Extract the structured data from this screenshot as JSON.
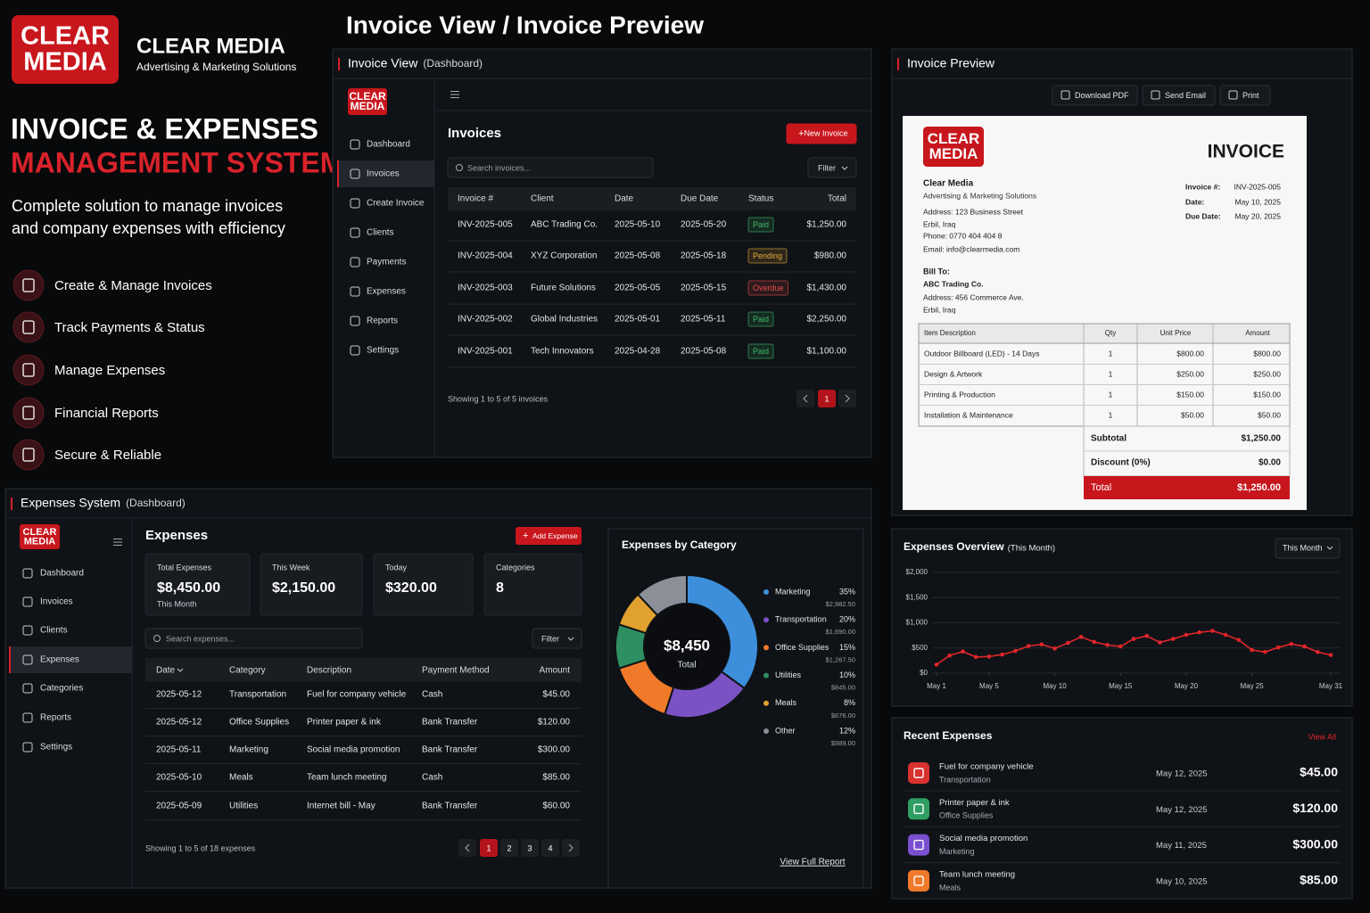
{
  "brand": {
    "logo_top": "CLEAR",
    "logo_bottom": "MEDIA",
    "name": "CLEAR MEDIA",
    "tagline": "Advertising & Marketing Solutions"
  },
  "hero": {
    "title_line1": "INVOICE & EXPENSES",
    "title_line2": "MANAGEMENT SYSTEM",
    "description_line1": "Complete solution to manage invoices",
    "description_line2": "and company expenses with efficiency",
    "features": [
      "Create & Manage Invoices",
      "Track Payments & Status",
      "Manage Expenses",
      "Financial Reports",
      "Secure & Reliable"
    ]
  },
  "page_title": "Invoice View / Invoice Preview",
  "invoice_view": {
    "panel_title": "Invoice View",
    "panel_note": "(Dashboard)",
    "nav": [
      "Dashboard",
      "Invoices",
      "Create Invoice",
      "Clients",
      "Payments",
      "Expenses",
      "Reports",
      "Settings"
    ],
    "heading": "Invoices",
    "new_button": "New Invoice",
    "search_placeholder": "Search invoices...",
    "filter": "Filter",
    "table": {
      "columns": [
        "Invoice #",
        "Client",
        "Date",
        "Due Date",
        "Status",
        "Total"
      ],
      "rows": [
        [
          "INV-2025-005",
          "ABC Trading Co.",
          "2025-05-10",
          "2025-05-20",
          "Paid",
          "$1,250.00"
        ],
        [
          "INV-2025-004",
          "XYZ Corporation",
          "2025-05-08",
          "2025-05-18",
          "Pending",
          "$980.00"
        ],
        [
          "INV-2025-003",
          "Future Solutions",
          "2025-05-05",
          "2025-05-15",
          "Overdue",
          "$1,430.00"
        ],
        [
          "INV-2025-002",
          "Global Industries",
          "2025-05-01",
          "2025-05-11",
          "Paid",
          "$2,250.00"
        ],
        [
          "INV-2025-001",
          "Tech Innovators",
          "2025-04-28",
          "2025-05-08",
          "Paid",
          "$1,100.00"
        ]
      ],
      "status_colors": [
        "#3fb96a",
        "#e5a93a",
        "#e24b4b",
        "#3fb96a",
        "#3fb96a"
      ]
    },
    "footer": "Showing 1 to 5 of 5 invoices",
    "pages": [
      1
    ]
  },
  "invoice_preview": {
    "panel_title": "Invoice Preview",
    "actions": [
      "Download PDF",
      "Send Email",
      "Print"
    ],
    "doc_title": "INVOICE",
    "company": "Clear Media",
    "company_tagline": "Advertising & Marketing Solutions",
    "company_lines": [
      "Address: 123 Business Street",
      "Erbil, Iraq",
      "Phone: 0770 404 404 8",
      "Email: info@clearmedia.com"
    ],
    "meta": [
      [
        "Invoice #:",
        "INV-2025-005"
      ],
      [
        "Date:",
        "May 10, 2025"
      ],
      [
        "Due Date:",
        "May 20, 2025"
      ]
    ],
    "bill_to_label": "Bill To:",
    "bill_to": [
      "ABC Trading Co.",
      "Address: 456 Commerce Ave.",
      "Erbil, Iraq"
    ],
    "items": {
      "columns": [
        "Item Description",
        "Qty",
        "Unit Price",
        "Amount"
      ],
      "rows": [
        [
          "Outdoor Billboard (LED) - 14 Days",
          1,
          "$800.00",
          "$800.00"
        ],
        [
          "Design & Artwork",
          1,
          "$250.00",
          "$250.00"
        ],
        [
          "Printing & Production",
          1,
          "$150.00",
          "$150.00"
        ],
        [
          "Installation & Maintenance",
          1,
          "$50.00",
          "$50.00"
        ]
      ]
    },
    "summary": [
      [
        "Subtotal",
        "$1,250.00"
      ],
      [
        "Discount (0%)",
        "$0.00"
      ],
      [
        "Total",
        "$1,250.00"
      ]
    ]
  },
  "expenses_system": {
    "panel_title": "Expenses System",
    "panel_note": "(Dashboard)",
    "nav": [
      "Dashboard",
      "Invoices",
      "Clients",
      "Expenses",
      "Categories",
      "Reports",
      "Settings"
    ],
    "heading": "Expenses",
    "add_button": "Add Expense",
    "stats": [
      {
        "label": "Total Expenses",
        "value": "$8,450.00",
        "note": "This Month"
      },
      {
        "label": "This Week",
        "value": "$2,150.00"
      },
      {
        "label": "Today",
        "value": "$320.00"
      },
      {
        "label": "Categories",
        "value": 8
      }
    ],
    "search_placeholder": "Search expenses...",
    "filter": "Filter",
    "table": {
      "columns": [
        "Date",
        "Category",
        "Description",
        "Payment Method",
        "Amount"
      ],
      "rows": [
        [
          "2025-05-12",
          "Transportation",
          "Fuel for company vehicle",
          "Cash",
          "$45.00"
        ],
        [
          "2025-05-12",
          "Office Supplies",
          "Printer paper & ink",
          "Bank Transfer",
          "$120.00"
        ],
        [
          "2025-05-11",
          "Marketing",
          "Social media promotion",
          "Bank Transfer",
          "$300.00"
        ],
        [
          "2025-05-10",
          "Meals",
          "Team lunch meeting",
          "Cash",
          "$85.00"
        ],
        [
          "2025-05-09",
          "Utilities",
          "Internet bill - May",
          "Bank Transfer",
          "$60.00"
        ]
      ]
    },
    "footer": "Showing 1 to 5 of 18 expenses",
    "pages": [
      1,
      2,
      3,
      4
    ]
  },
  "recent_expenses": {
    "title": "Recent Expenses",
    "view_all": "View All",
    "items": [
      {
        "name": "Fuel for company vehicle",
        "category": "Transportation",
        "date": "May 12, 2025",
        "amount": "$45.00",
        "color": "#d8322f"
      },
      {
        "name": "Printer paper & ink",
        "category": "Office Supplies",
        "date": "May 12, 2025",
        "amount": "$120.00",
        "color": "#2f9e63"
      },
      {
        "name": "Social media promotion",
        "category": "Marketing",
        "date": "May 11, 2025",
        "amount": "$300.00",
        "color": "#7a4fd0"
      },
      {
        "name": "Team lunch meeting",
        "category": "Meals",
        "date": "May 10, 2025",
        "amount": "$85.00",
        "color": "#f07a2a"
      }
    ]
  },
  "chart_data": [
    {
      "type": "pie",
      "title": "Expenses by Category",
      "categories": [
        "Marketing",
        "Transportation",
        "Office Supplies",
        "Utilities",
        "Meals",
        "Other"
      ],
      "values": [
        35,
        20,
        15,
        10,
        8,
        12
      ],
      "value_labels": [
        "35%",
        "20%",
        "15%",
        "10%",
        "8%",
        "12%"
      ],
      "amount_labels": [
        "$2,982.50",
        "$1,690.00",
        "$1,267.50",
        "$845.00",
        "$676.00",
        "$989.00"
      ],
      "colors": [
        "#3d8fdc",
        "#7a52c4",
        "#f07a2a",
        "#2e8f63",
        "#e0a12e",
        "#8a8f98"
      ],
      "center_value": "$8,450",
      "center_label": "Total",
      "link": "View Full Report"
    },
    {
      "type": "line",
      "title": "Expenses Overview",
      "title_note": "(This Month)",
      "period": "This Month",
      "x": [
        1,
        2,
        3,
        4,
        5,
        6,
        7,
        8,
        9,
        10,
        11,
        12,
        13,
        14,
        15,
        16,
        17,
        18,
        19,
        20,
        21,
        22,
        23,
        24,
        25,
        26,
        27,
        28,
        29,
        30,
        31
      ],
      "series": [
        {
          "name": "Expenses",
          "color": "#e0262b",
          "values": [
            170,
            350,
            430,
            320,
            330,
            370,
            440,
            540,
            570,
            490,
            600,
            720,
            620,
            560,
            530,
            680,
            740,
            610,
            680,
            760,
            810,
            840,
            760,
            660,
            460,
            420,
            510,
            580,
            530,
            420,
            360
          ]
        }
      ],
      "xlim": [
        1,
        31
      ],
      "xticks": [
        {
          "value": 1,
          "label": "May 1"
        },
        {
          "value": 5,
          "label": "May 5"
        },
        {
          "value": 10,
          "label": "May 10"
        },
        {
          "value": 15,
          "label": "May 15"
        },
        {
          "value": 20,
          "label": "May 20"
        },
        {
          "value": 25,
          "label": "May 25"
        },
        {
          "value": 31,
          "label": "May 31"
        }
      ],
      "ylim": [
        0,
        2000
      ],
      "yticks": [
        {
          "value": 0,
          "label": "$0"
        },
        {
          "value": 500,
          "label": "$500"
        },
        {
          "value": 1000,
          "label": "$1,000"
        },
        {
          "value": 1500,
          "label": "$1,500"
        },
        {
          "value": 2000,
          "label": "$2,000"
        }
      ],
      "grid": true
    }
  ]
}
